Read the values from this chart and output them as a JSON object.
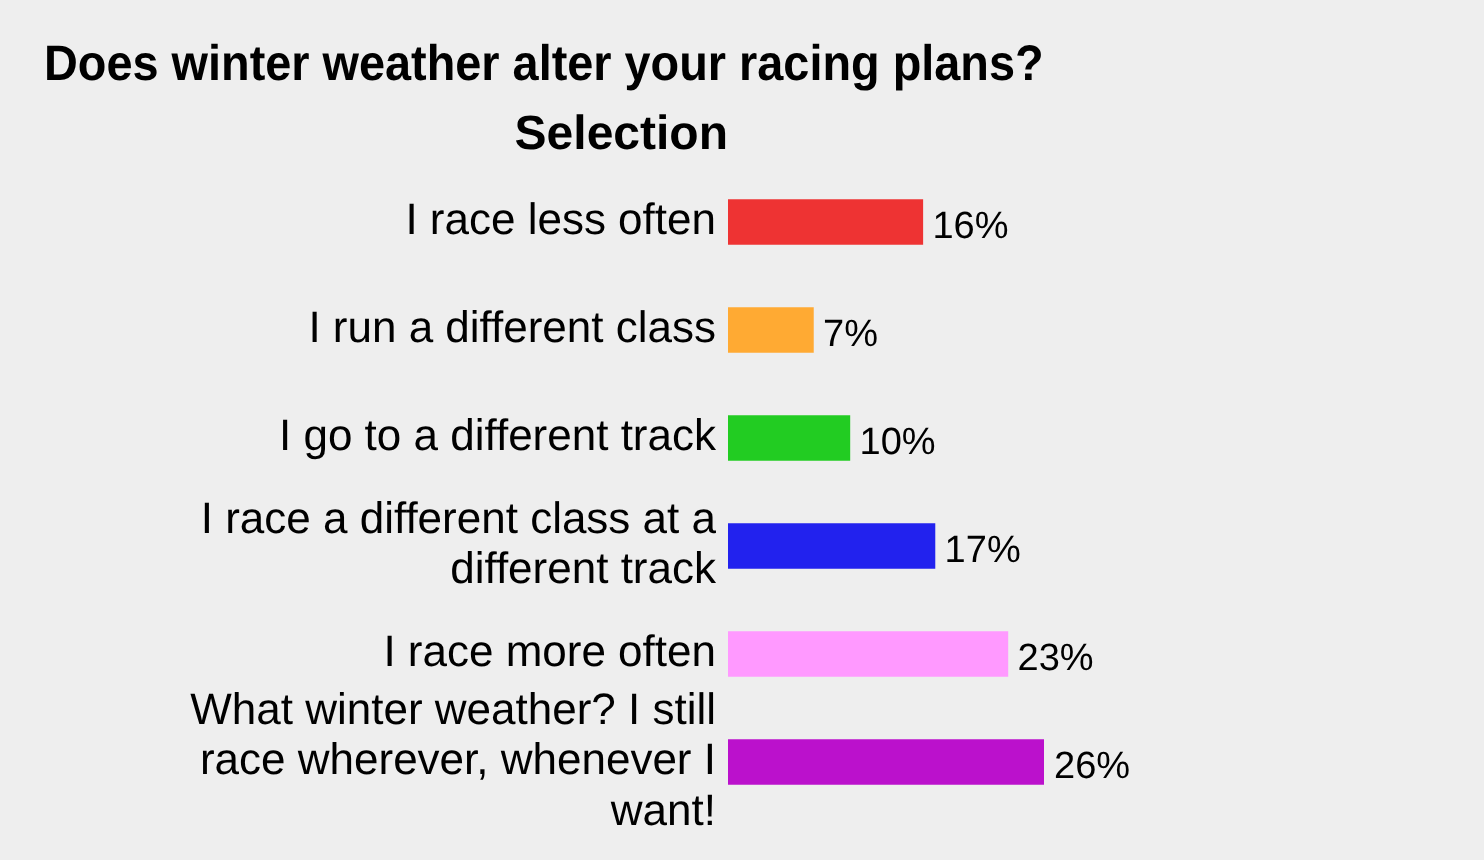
{
  "chart_data": {
    "type": "bar",
    "orientation": "horizontal",
    "title": "Does winter weather alter your racing plans?",
    "ylabel": "Selection",
    "categories": [
      "I race less often",
      "I run a different class",
      "I go to a different track",
      "I race a different class at a different track",
      "I race more often",
      "What winter weather? I still race wherever, whenever I want!"
    ],
    "values": [
      16,
      7,
      10,
      17,
      23,
      26
    ],
    "colors": [
      "#ee3333",
      "#ffaa33",
      "#22cc22",
      "#2222ee",
      "#ff99ff",
      "#bb11cc"
    ],
    "value_labels": [
      "16%",
      "7%",
      "10%",
      "17%",
      "23%",
      "26%"
    ],
    "tick_labels": "y"
  }
}
